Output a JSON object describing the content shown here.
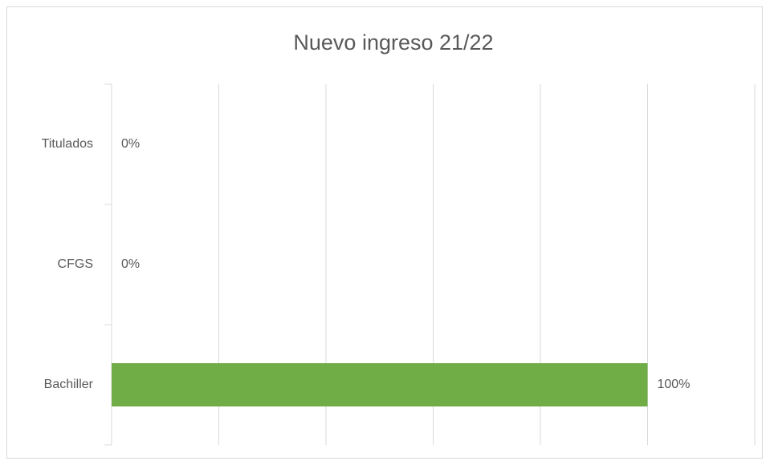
{
  "chart_data": {
    "type": "bar",
    "orientation": "horizontal",
    "title": "Nuevo ingreso 21/22",
    "categories": [
      "Bachiller",
      "CFGS",
      "Titulados"
    ],
    "values": [
      100,
      0,
      0
    ],
    "value_labels": [
      "100%",
      "0%",
      "0%"
    ],
    "color": "#70ad47",
    "xlim": [
      0,
      120
    ],
    "xticks": [
      0,
      20,
      40,
      60,
      80,
      100,
      120
    ],
    "grid": true
  }
}
